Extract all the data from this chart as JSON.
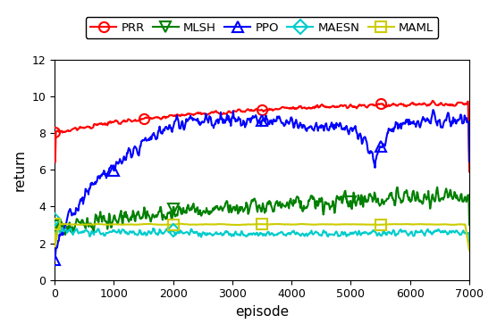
{
  "title": "",
  "xlabel": "episode",
  "ylabel": "return",
  "xlim": [
    0,
    7000
  ],
  "ylim": [
    0,
    12
  ],
  "yticks": [
    0,
    2,
    4,
    6,
    8,
    10,
    12
  ],
  "xticks": [
    0,
    1000,
    2000,
    3000,
    4000,
    5000,
    6000,
    7000
  ],
  "legend_labels": [
    "PRR",
    "MLSH",
    "PPO",
    "MAESN",
    "MAML"
  ],
  "colors": {
    "PRR": "#ff0000",
    "MLSH": "#008000",
    "PPO": "#0000ff",
    "MAESN": "#00cccc",
    "MAML": "#cccc00"
  },
  "marker_styles": {
    "PRR": "o",
    "MLSH": "v",
    "PPO": "^",
    "MAESN": "D",
    "MAML": "s"
  },
  "figsize": [
    5.56,
    3.72
  ],
  "dpi": 100
}
